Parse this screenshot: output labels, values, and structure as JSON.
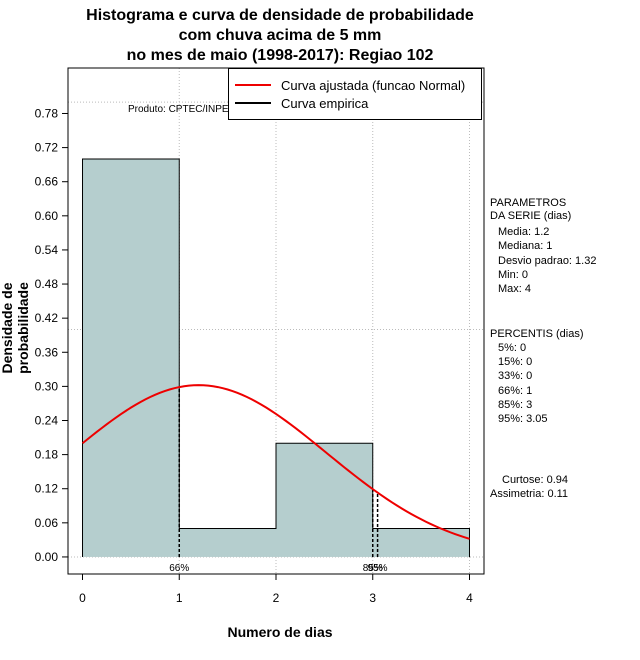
{
  "title_lines": [
    "Histograma e curva de densidade de probabilidade",
    "com chuva acima de 5 mm",
    "no mes de maio (1998-2017): Regiao 102"
  ],
  "produto": "Produto: CPTEC/INPE",
  "legend": {
    "fitted": "Curva ajustada (funcao Normal)",
    "empirical": "Curva empirica"
  },
  "params": {
    "header1": "PARAMETROS",
    "header2": "DA SERIE (dias)",
    "media": "Media: 1.2",
    "mediana": "Mediana: 1",
    "desvio": "Desvio padrao: 1.32",
    "min": "Min: 0",
    "max": "Max: 4"
  },
  "percentis": {
    "header": "PERCENTIS (dias)",
    "p5": "5%: 0",
    "p15": "15%: 0",
    "p33": "33%: 0",
    "p66": "66%: 1",
    "p85": "85%: 3",
    "p95": "95%: 3.05"
  },
  "shape": {
    "curtose": "Curtose: 0.94",
    "assimetria": "Assimetria: 0.11"
  },
  "colors": {
    "bar_fill": "#b5cece",
    "fitted_curve": "#ee0000",
    "grid": "#bbbbbb"
  },
  "chart_data": {
    "type": "bar",
    "title": "Histograma e curva de densidade de probabilidade com chuva acima de 5 mm no mes de maio (1998-2017): Regiao 102",
    "xlabel": "Numero de dias",
    "ylabel": "Densidade de probabilidade",
    "xlim": [
      -0.15,
      4.15
    ],
    "ylim": [
      -0.03,
      0.86
    ],
    "x_ticks": [
      0,
      1,
      2,
      3,
      4
    ],
    "y_ticks": [
      "0.00",
      "0.06",
      "0.12",
      "0.18",
      "0.24",
      "0.30",
      "0.36",
      "0.42",
      "0.48",
      "0.54",
      "0.60",
      "0.66",
      "0.72",
      "0.78"
    ],
    "bins": [
      {
        "x0": 0,
        "x1": 1,
        "density": 0.7
      },
      {
        "x0": 1,
        "x1": 2,
        "density": 0.05
      },
      {
        "x0": 2,
        "x1": 3,
        "density": 0.2
      },
      {
        "x0": 3,
        "x1": 4,
        "density": 0.05
      }
    ],
    "normal_fit": {
      "mean": 1.2,
      "sd": 1.32,
      "x_range": [
        0,
        4
      ]
    },
    "percentile_lines": [
      {
        "label": "66%",
        "x": 1
      },
      {
        "label": "85%",
        "x": 3
      },
      {
        "label": "95%",
        "x": 3.05
      }
    ],
    "grid_x": [
      1,
      2,
      3,
      4
    ],
    "grid_y": [
      0.4,
      0.8
    ]
  }
}
